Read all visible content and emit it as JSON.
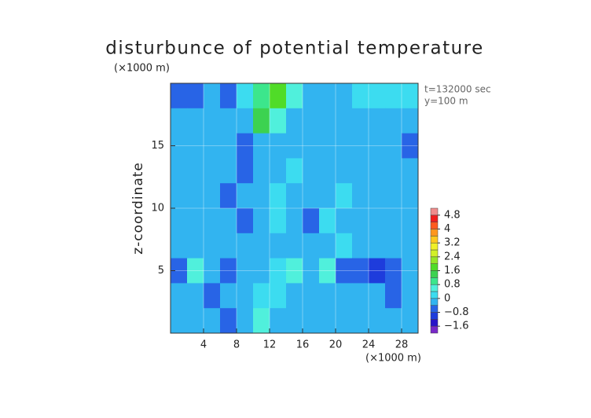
{
  "chart_data": {
    "type": "heatmap",
    "title": "disturbunce of potential temperature",
    "y_unit": "(×1000 m)",
    "x_unit": "(×1000 m)",
    "ylabel": "z-coordinate",
    "annotations": [
      "t=132000 sec",
      "y=100 m"
    ],
    "xlim": [
      0,
      30
    ],
    "ylim": [
      0,
      20
    ],
    "xticks": [
      4,
      8,
      12,
      16,
      20,
      24,
      28
    ],
    "yticks": [
      5,
      10,
      15
    ],
    "grid": true,
    "x": [
      1,
      3,
      5,
      7,
      9,
      11,
      13,
      15,
      17,
      19,
      21,
      23,
      25,
      27,
      29
    ],
    "y": [
      19,
      17,
      15,
      13,
      11,
      9,
      7,
      5,
      3,
      1
    ],
    "z": [
      [
        -0.8,
        -0.6,
        -0.2,
        -0.8,
        0.2,
        1.0,
        1.8,
        0.6,
        -0.2,
        -0.4,
        -0.2,
        0.0,
        0.2,
        0.2,
        0.0
      ],
      [
        -0.2,
        -0.4,
        -0.3,
        -0.2,
        -0.4,
        1.2,
        0.4,
        -0.4,
        -0.2,
        -0.3,
        -0.2,
        -0.3,
        -0.2,
        -0.2,
        -0.4
      ],
      [
        -0.2,
        -0.2,
        -0.3,
        -0.2,
        -0.6,
        -0.2,
        -0.4,
        -0.2,
        -0.3,
        -0.4,
        -0.2,
        -0.3,
        -0.2,
        -0.3,
        -0.6
      ],
      [
        -0.2,
        -0.2,
        -0.3,
        -0.2,
        -0.6,
        -0.2,
        -0.3,
        0.0,
        -0.4,
        -0.2,
        -0.4,
        -0.2,
        -0.3,
        -0.2,
        -0.4
      ],
      [
        -0.3,
        -0.2,
        -0.2,
        -0.6,
        -0.4,
        -0.2,
        0.2,
        -0.2,
        -0.4,
        -0.2,
        0.2,
        -0.3,
        -0.2,
        -0.3,
        -0.2
      ],
      [
        -0.2,
        -0.3,
        -0.2,
        -0.4,
        -0.6,
        -0.2,
        0.0,
        -0.3,
        -0.6,
        0.0,
        -0.2,
        -0.3,
        -0.2,
        -0.2,
        -0.3
      ],
      [
        -0.4,
        -0.3,
        -0.2,
        -0.3,
        -0.2,
        -0.3,
        -0.2,
        -0.4,
        -0.3,
        -0.2,
        0.0,
        -0.3,
        -0.4,
        -0.3,
        -0.2
      ],
      [
        -0.8,
        0.6,
        -0.4,
        -0.8,
        -0.2,
        -0.2,
        0.0,
        0.4,
        -0.2,
        0.8,
        -0.6,
        -0.8,
        -1.0,
        -0.6,
        -0.4
      ],
      [
        -0.4,
        -0.4,
        -0.6,
        -0.4,
        -0.2,
        0.2,
        0.0,
        -0.4,
        -0.2,
        -0.2,
        -0.4,
        -0.4,
        -0.4,
        -0.6,
        -0.4
      ],
      [
        -0.2,
        -0.4,
        -0.3,
        -0.6,
        -0.2,
        0.6,
        -0.2,
        -0.4,
        -0.2,
        -0.3,
        -0.2,
        -0.3,
        -0.4,
        -0.3,
        -0.2
      ]
    ],
    "clim": [
      -2,
      5.2
    ],
    "colors": [
      "#7828c8",
      "#2814c8",
      "#1e3cdc",
      "#2864e6",
      "#32b4f0",
      "#3cdcf0",
      "#50f0dc",
      "#3ce68c",
      "#3cd250",
      "#50dc28",
      "#96e628",
      "#d2f028",
      "#f0f028",
      "#ffc81e",
      "#ff961e",
      "#ff5a1e",
      "#f01e1e",
      "#f08c8c"
    ],
    "cticks": [
      {
        "value": -1.6,
        "label": "−1.6"
      },
      {
        "value": -0.8,
        "label": "−0.8"
      },
      0,
      0.8,
      1.6,
      2.4,
      3.2,
      4,
      4.8
    ]
  }
}
